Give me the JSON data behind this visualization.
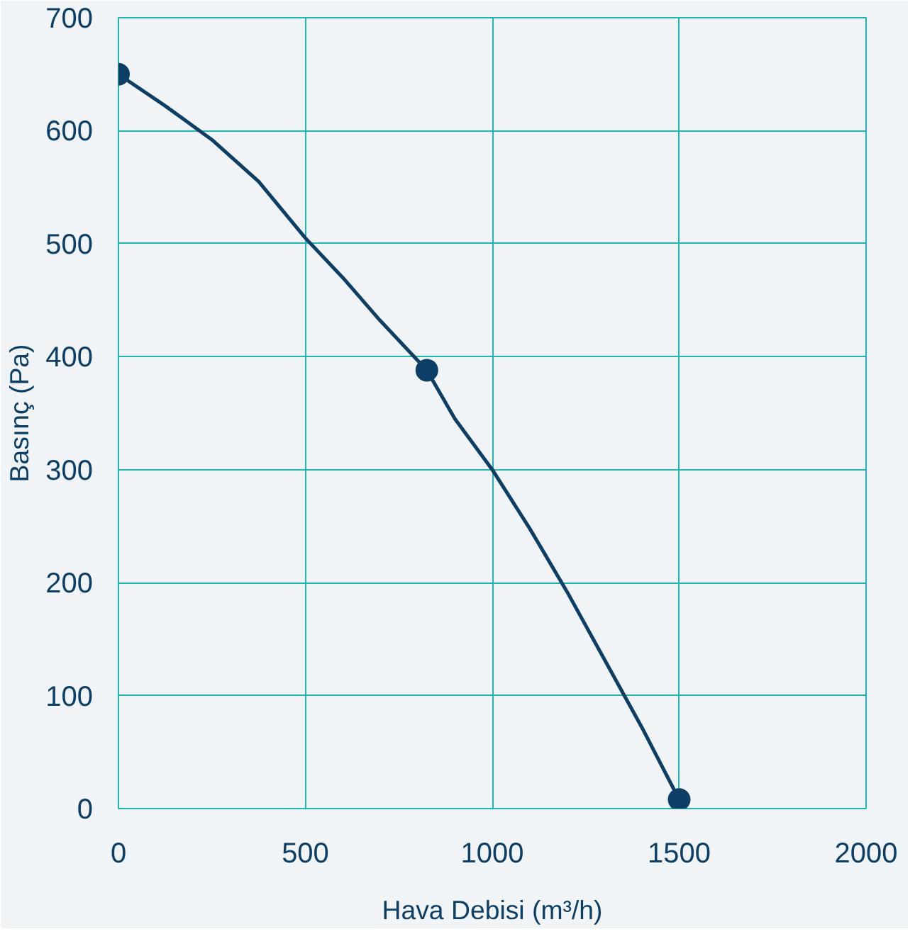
{
  "chart_data": {
    "type": "line",
    "xlabel": "Hava Debisi (m³/h)",
    "ylabel": "Basınç (Pa)",
    "xlim": [
      0,
      2000
    ],
    "ylim": [
      0,
      700
    ],
    "xticks": [
      0,
      500,
      1000,
      1500,
      2000
    ],
    "yticks": [
      0,
      100,
      200,
      300,
      400,
      500,
      600,
      700
    ],
    "grid": true,
    "series": [
      {
        "color": "#0d3f66",
        "x": [
          0,
          125,
          250,
          375,
          500,
          600,
          700,
          825,
          900,
          1000,
          1100,
          1200,
          1300,
          1400,
          1500
        ],
        "values": [
          650,
          622,
          592,
          555,
          505,
          470,
          432,
          388,
          345,
          300,
          248,
          192,
          132,
          72,
          8
        ],
        "marker": "none"
      },
      {
        "type": "scatter",
        "color": "#0d3f66",
        "x": [
          0,
          825,
          1500
        ],
        "values": [
          650,
          388,
          8
        ],
        "marker": "circle"
      }
    ]
  }
}
